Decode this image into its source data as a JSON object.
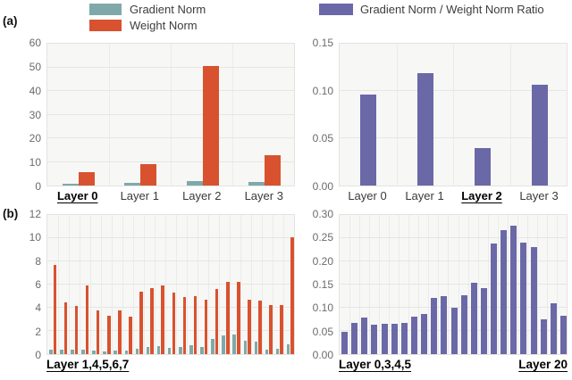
{
  "panel_labels": {
    "a": "(a)",
    "b": "(b)"
  },
  "legend": {
    "gradient_norm": {
      "label": "Gradient Norm",
      "color": "#7FA9A9"
    },
    "weight_norm": {
      "label": "Weight Norm",
      "color": "#D8522F"
    },
    "ratio": {
      "label": "Gradient Norm / Weight Norm Ratio",
      "color": "#6B68A7"
    }
  },
  "chart_data": [
    {
      "id": "a_norms",
      "type": "bar",
      "panel": "a",
      "categories": [
        "Layer 0",
        "Layer 1",
        "Layer 2",
        "Layer 3"
      ],
      "emphasized_categories": [
        "Layer 0"
      ],
      "series": [
        {
          "name": "Gradient Norm",
          "color": "#7FA9A9",
          "values": [
            0.7,
            1.1,
            2.0,
            1.4
          ]
        },
        {
          "name": "Weight Norm",
          "color": "#D8522F",
          "values": [
            5.8,
            9.0,
            50.5,
            13.0
          ]
        }
      ],
      "ylim": [
        0,
        60
      ],
      "yticks": [
        "0",
        "10",
        "20",
        "30",
        "40",
        "50",
        "60"
      ],
      "grid": true,
      "legend_position": "top"
    },
    {
      "id": "a_ratio",
      "type": "bar",
      "panel": "a",
      "categories": [
        "Layer 0",
        "Layer 1",
        "Layer 2",
        "Layer 3"
      ],
      "emphasized_categories": [
        "Layer 2"
      ],
      "series": [
        {
          "name": "Gradient Norm / Weight Norm Ratio",
          "color": "#6B68A7",
          "values": [
            0.096,
            0.119,
            0.04,
            0.107
          ]
        }
      ],
      "ylim": [
        0,
        0.15
      ],
      "yticks": [
        "0.00",
        "0.05",
        "0.10",
        "0.15"
      ],
      "grid": true,
      "legend_position": "top"
    },
    {
      "id": "b_norms",
      "type": "bar",
      "panel": "b",
      "x": [
        0,
        1,
        2,
        3,
        4,
        5,
        6,
        7,
        8,
        9,
        10,
        11,
        12,
        13,
        14,
        15,
        16,
        17,
        18,
        19,
        20,
        21,
        22
      ],
      "series": [
        {
          "name": "Gradient Norm",
          "color": "#7FA9A9",
          "values": [
            0.4,
            0.35,
            0.35,
            0.42,
            0.3,
            0.27,
            0.3,
            0.3,
            0.5,
            0.65,
            0.7,
            0.55,
            0.6,
            0.75,
            0.65,
            1.3,
            1.65,
            1.7,
            1.15,
            1.05,
            0.35,
            0.45,
            0.85
          ]
        },
        {
          "name": "Weight Norm",
          "color": "#D8522F",
          "values": [
            7.7,
            4.5,
            4.15,
            5.9,
            3.8,
            3.3,
            3.8,
            3.25,
            5.4,
            5.7,
            5.9,
            5.3,
            4.9,
            5.0,
            4.7,
            5.6,
            6.2,
            6.2,
            4.7,
            4.65,
            4.25,
            4.25,
            10.1
          ]
        }
      ],
      "ylim": [
        0,
        12
      ],
      "yticks": [
        "0",
        "2",
        "4",
        "6",
        "8",
        "10",
        "12"
      ],
      "grid": true,
      "x_annotations": {
        "left": "Layer 1,4,5,6,7"
      }
    },
    {
      "id": "b_ratio",
      "type": "bar",
      "panel": "b",
      "x": [
        0,
        1,
        2,
        3,
        4,
        5,
        6,
        7,
        8,
        9,
        10,
        11,
        12,
        13,
        14,
        15,
        16,
        17,
        18,
        19,
        20,
        21,
        22
      ],
      "series": [
        {
          "name": "Gradient Norm / Weight Norm Ratio",
          "color": "#6B68A7",
          "values": [
            0.049,
            0.068,
            0.078,
            0.064,
            0.065,
            0.066,
            0.067,
            0.08,
            0.087,
            0.121,
            0.125,
            0.1,
            0.126,
            0.153,
            0.142,
            0.238,
            0.268,
            0.276,
            0.24,
            0.23,
            0.075,
            0.11,
            0.083
          ]
        }
      ],
      "ylim": [
        0,
        0.3
      ],
      "yticks": [
        "0.00",
        "0.05",
        "0.10",
        "0.15",
        "0.20",
        "0.25",
        "0.30"
      ],
      "grid": true,
      "x_annotations": {
        "left": "Layer 0,3,4,5",
        "right": "Layer 20"
      }
    }
  ]
}
